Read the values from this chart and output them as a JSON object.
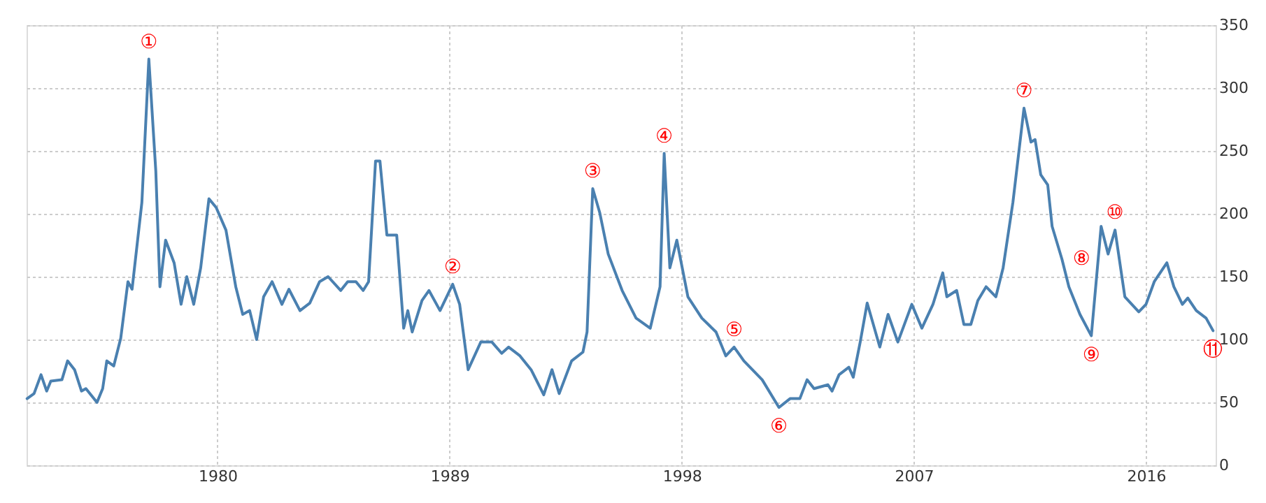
{
  "chart_data": {
    "type": "line",
    "x": [
      1972.62,
      1972.89,
      1973.16,
      1973.38,
      1973.54,
      1973.97,
      1974.19,
      1974.46,
      1974.73,
      1974.9,
      1975.33,
      1975.55,
      1975.71,
      1975.98,
      1976.25,
      1976.53,
      1976.69,
      1977.07,
      1977.34,
      1977.61,
      1977.77,
      1977.99,
      1978.32,
      1978.59,
      1978.81,
      1979.08,
      1979.35,
      1979.67,
      1979.95,
      1980.33,
      1980.71,
      1980.98,
      1981.25,
      1981.52,
      1981.79,
      1982.12,
      1982.5,
      1982.77,
      1983.2,
      1983.58,
      1983.96,
      1984.29,
      1984.78,
      1985.05,
      1985.37,
      1985.65,
      1985.86,
      1986.13,
      1986.3,
      1986.57,
      1986.95,
      1987.22,
      1987.38,
      1987.55,
      1987.93,
      1988.2,
      1988.63,
      1989.12,
      1989.39,
      1989.72,
      1990.21,
      1990.64,
      1991.02,
      1991.29,
      1991.73,
      1992.16,
      1992.65,
      1992.97,
      1993.25,
      1993.73,
      1994.17,
      1994.33,
      1994.55,
      1994.82,
      1995.15,
      1995.69,
      1996.23,
      1996.78,
      1997.16,
      1997.32,
      1997.54,
      1997.81,
      1998.24,
      1998.78,
      1999.33,
      1999.71,
      2000.03,
      2000.41,
      2001.12,
      2001.77,
      2002.2,
      2002.58,
      2002.86,
      2003.13,
      2003.67,
      2003.83,
      2004.1,
      2004.48,
      2004.65,
      2004.92,
      2005.19,
      2005.68,
      2006.0,
      2006.38,
      2006.92,
      2007.31,
      2007.74,
      2008.12,
      2008.28,
      2008.66,
      2008.94,
      2009.21,
      2009.48,
      2009.8,
      2010.18,
      2010.46,
      2010.84,
      2011.27,
      2011.54,
      2011.7,
      2011.92,
      2012.19,
      2012.36,
      2012.74,
      2013.01,
      2013.44,
      2013.88,
      2014.26,
      2014.53,
      2014.8,
      2015.18,
      2015.72,
      2016.0,
      2016.32,
      2016.81,
      2017.08,
      2017.41,
      2017.62,
      2017.95,
      2018.33,
      2018.6
    ],
    "series": [
      {
        "color": "#4a80b0",
        "values": [
          53,
          57,
          72,
          59,
          67,
          68,
          83,
          76,
          59,
          61,
          50,
          61,
          83,
          79,
          101,
          146,
          140,
          209,
          323,
          234,
          142,
          179,
          161,
          128,
          150,
          128,
          157,
          212,
          205,
          187,
          142,
          120,
          123,
          100,
          134,
          146,
          128,
          140,
          123,
          129,
          146,
          150,
          139,
          146,
          146,
          139,
          146,
          242,
          242,
          183,
          183,
          109,
          123,
          106,
          131,
          139,
          123,
          144,
          128,
          76,
          98,
          98,
          89,
          94,
          87,
          76,
          56,
          76,
          57,
          83,
          90,
          106,
          220,
          201,
          168,
          139,
          117,
          109,
          142,
          248,
          157,
          179,
          134,
          117,
          106,
          87,
          94,
          83,
          68,
          46,
          53,
          53,
          68,
          61,
          64,
          59,
          72,
          78,
          70,
          98,
          129,
          94,
          120,
          98,
          128,
          109,
          128,
          153,
          134,
          139,
          112,
          112,
          131,
          142,
          134,
          157,
          209,
          284,
          257,
          259,
          231,
          223,
          190,
          164,
          142,
          120,
          103,
          190,
          168,
          187,
          134,
          122,
          128,
          146,
          161,
          142,
          128,
          133,
          123,
          117,
          107
        ]
      }
    ],
    "xlim": [
      1972.6,
      2018.7
    ],
    "xticks": [
      1980,
      1989,
      1998,
      2007,
      2016
    ],
    "ylim": [
      0,
      350
    ],
    "yticks": [
      0,
      50,
      100,
      150,
      200,
      250,
      300,
      350
    ],
    "grid": true,
    "legend": false,
    "marker": "none",
    "line_style": "solid",
    "annotations": [
      {
        "text": "①",
        "x": 1977.34,
        "y": 323
      },
      {
        "text": "②",
        "x": 1989.12,
        "y": 144
      },
      {
        "text": "③",
        "x": 1994.55,
        "y": 220
      },
      {
        "text": "④",
        "x": 1997.32,
        "y": 248
      },
      {
        "text": "⑤",
        "x": 2000.03,
        "y": 94
      },
      {
        "text": "⑥",
        "x": 2001.77,
        "y": 46
      },
      {
        "text": "⑦",
        "x": 2011.27,
        "y": 284
      },
      {
        "text": "⑧",
        "x": 2012.74,
        "y": 164
      },
      {
        "text": "⑨",
        "x": 2013.88,
        "y": 103
      },
      {
        "text": "⑩",
        "x": 2014.8,
        "y": 187
      },
      {
        "text": "⑪",
        "x": 2018.6,
        "y": 107
      }
    ]
  }
}
